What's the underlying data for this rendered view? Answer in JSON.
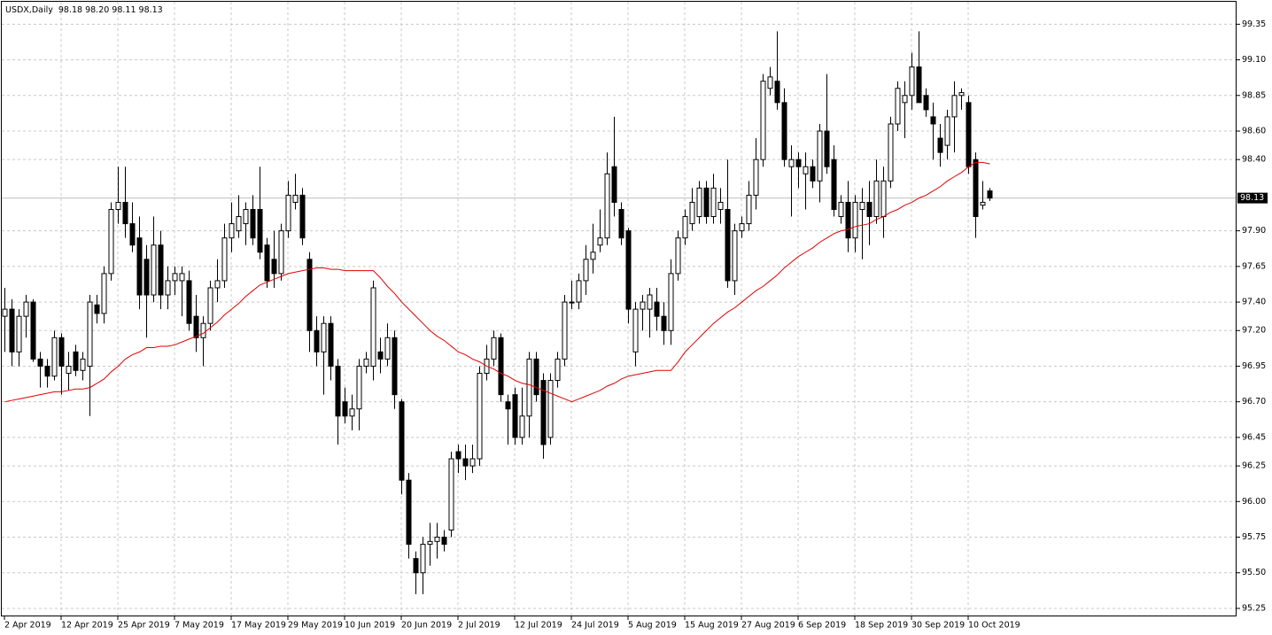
{
  "chart_data": {
    "type": "candlestick",
    "title": "USDX,Daily",
    "subtitle": "98.18 98.20 98.11 98.13",
    "categories": [
      "2 Apr 2019",
      null,
      null,
      null,
      null,
      null,
      null,
      null,
      "12 Apr 2019",
      null,
      null,
      null,
      null,
      null,
      null,
      null,
      "25 Apr 2019",
      null,
      null,
      null,
      null,
      null,
      null,
      null,
      "7 May 2019",
      null,
      null,
      null,
      null,
      null,
      null,
      null,
      "17 May 2019",
      null,
      null,
      null,
      null,
      null,
      null,
      null,
      "29 May 2019",
      null,
      null,
      null,
      null,
      null,
      null,
      null,
      "10 Jun 2019",
      null,
      null,
      null,
      null,
      null,
      null,
      null,
      "20 Jun 2019",
      null,
      null,
      null,
      null,
      null,
      null,
      null,
      "2 Jul 2019",
      null,
      null,
      null,
      null,
      null,
      null,
      null,
      "12 Jul 2019",
      null,
      null,
      null,
      null,
      null,
      null,
      null,
      "24 Jul 2019",
      null,
      null,
      null,
      null,
      null,
      null,
      null,
      "5 Aug 2019",
      null,
      null,
      null,
      null,
      null,
      null,
      null,
      "15 Aug 2019",
      null,
      null,
      null,
      null,
      null,
      null,
      null,
      "27 Aug 2019",
      null,
      null,
      null,
      null,
      null,
      null,
      null,
      "6 Sep 2019",
      null,
      null,
      null,
      null,
      null,
      null,
      null,
      "18 Sep 2019",
      null,
      null,
      null,
      null,
      null,
      null,
      null,
      "30 Sep 2019",
      null,
      null,
      null,
      null,
      null,
      null,
      null,
      "10 Oct 2019",
      null,
      null,
      null
    ],
    "open": [
      97.3,
      97.35,
      97.05,
      97.3,
      97.4,
      97.0,
      96.95,
      96.88,
      97.15,
      96.9,
      97.05,
      96.92,
      96.95,
      97.38,
      97.32,
      97.6,
      98.05,
      98.1,
      97.95,
      97.85,
      97.7,
      97.45,
      97.8,
      97.45,
      97.55,
      97.55,
      97.55,
      97.3,
      97.15,
      97.25,
      97.5,
      97.55,
      97.85,
      97.9,
      97.95,
      98.05,
      98.05,
      97.8,
      97.7,
      97.6,
      97.9,
      98.1,
      98.15,
      97.7,
      97.2,
      97.05,
      97.25,
      96.95,
      96.7,
      96.6,
      96.65,
      96.95,
      96.95,
      97.05,
      97.0,
      97.15,
      96.7,
      96.15,
      95.6,
      95.5,
      95.7,
      95.72,
      95.75,
      95.8,
      96.35,
      96.3,
      96.25,
      96.3,
      96.9,
      97.0,
      97.15,
      96.7,
      96.75,
      96.45,
      96.6,
      97.0,
      96.85,
      96.45,
      96.85,
      97.0,
      97.4,
      97.4,
      97.55,
      97.7,
      97.8,
      97.85,
      98.35,
      98.05,
      97.9,
      97.05,
      97.35,
      97.35,
      97.4,
      97.3,
      97.2,
      97.6,
      97.85,
      97.95,
      98.0,
      98.2,
      98.0,
      98.05,
      98.05,
      97.55,
      97.9,
      97.95,
      98.15,
      98.4,
      98.9,
      98.95,
      98.8,
      98.35,
      98.4,
      98.3,
      98.35,
      98.25,
      98.6,
      98.4,
      98.0,
      98.1,
      97.85,
      98.05,
      98.1,
      98.0,
      98.0,
      98.25,
      98.65,
      98.8,
      98.85,
      99.05,
      98.85,
      98.7,
      98.55,
      98.5,
      98.7,
      98.85,
      98.8,
      98.4,
      98.08,
      98.18
    ],
    "high": [
      97.5,
      97.42,
      97.35,
      97.45,
      97.42,
      97.05,
      97.0,
      97.2,
      97.18,
      97.05,
      97.1,
      97.05,
      97.45,
      97.45,
      97.65,
      98.1,
      98.35,
      98.35,
      98.1,
      98.0,
      97.8,
      98.0,
      97.9,
      97.65,
      97.65,
      97.65,
      97.62,
      97.45,
      97.3,
      97.55,
      97.7,
      97.95,
      98.1,
      98.15,
      98.1,
      98.15,
      98.35,
      97.85,
      97.9,
      97.95,
      98.25,
      98.3,
      98.2,
      97.75,
      97.3,
      97.3,
      97.3,
      97.0,
      96.8,
      96.75,
      97.0,
      97.05,
      97.55,
      97.15,
      97.25,
      97.2,
      96.72,
      96.2,
      95.65,
      95.75,
      95.85,
      95.85,
      95.8,
      96.35,
      96.4,
      96.4,
      96.4,
      96.95,
      97.1,
      97.2,
      97.18,
      96.75,
      96.8,
      96.8,
      97.05,
      97.05,
      96.9,
      96.9,
      97.05,
      97.45,
      97.55,
      97.6,
      97.8,
      97.95,
      98.05,
      98.45,
      98.7,
      98.1,
      97.92,
      97.4,
      97.45,
      97.5,
      97.5,
      97.4,
      97.7,
      97.9,
      98.05,
      98.2,
      98.25,
      98.25,
      98.3,
      98.2,
      98.4,
      97.95,
      98.0,
      98.25,
      98.55,
      99.0,
      99.05,
      99.3,
      98.9,
      98.5,
      98.45,
      98.45,
      98.4,
      98.65,
      99.0,
      98.5,
      98.15,
      98.25,
      98.15,
      98.2,
      98.25,
      98.4,
      98.35,
      98.7,
      98.95,
      98.95,
      99.15,
      99.3,
      98.9,
      98.8,
      98.65,
      98.75,
      98.95,
      98.9,
      98.85,
      98.45,
      98.25,
      98.2
    ],
    "low": [
      97.05,
      96.95,
      96.95,
      97.15,
      96.98,
      96.8,
      96.8,
      96.85,
      96.75,
      96.78,
      96.88,
      96.85,
      96.6,
      97.25,
      97.25,
      97.55,
      97.95,
      97.85,
      97.75,
      97.35,
      97.15,
      97.4,
      97.35,
      97.35,
      97.45,
      97.3,
      97.2,
      97.05,
      96.95,
      97.2,
      97.4,
      97.5,
      97.75,
      97.85,
      97.8,
      97.8,
      97.7,
      97.5,
      97.5,
      97.55,
      97.85,
      98.05,
      97.8,
      97.05,
      96.95,
      96.75,
      96.85,
      96.4,
      96.55,
      96.5,
      96.5,
      96.9,
      96.85,
      96.9,
      96.95,
      96.65,
      96.05,
      95.6,
      95.35,
      95.35,
      95.55,
      95.6,
      95.65,
      95.75,
      96.2,
      96.15,
      96.2,
      96.25,
      96.85,
      96.95,
      96.7,
      96.4,
      96.4,
      96.4,
      96.45,
      96.7,
      96.3,
      96.4,
      96.8,
      96.95,
      97.35,
      97.35,
      97.45,
      97.6,
      97.75,
      97.8,
      98.0,
      97.8,
      97.25,
      96.95,
      97.2,
      97.15,
      97.2,
      97.1,
      97.1,
      97.55,
      97.8,
      97.9,
      97.95,
      97.95,
      97.95,
      97.95,
      97.5,
      97.45,
      97.85,
      97.9,
      98.05,
      98.35,
      98.85,
      98.75,
      98.35,
      98.0,
      98.2,
      98.05,
      98.2,
      98.1,
      98.3,
      98.0,
      97.95,
      97.75,
      97.75,
      97.7,
      97.8,
      97.95,
      97.85,
      98.2,
      98.6,
      98.55,
      98.75,
      98.8,
      98.7,
      98.4,
      98.35,
      98.4,
      98.45,
      98.75,
      98.3,
      97.85,
      98.05,
      98.11
    ],
    "close": [
      97.35,
      97.05,
      97.3,
      97.4,
      97.0,
      96.95,
      96.88,
      97.15,
      96.95,
      96.95,
      96.92,
      97.0,
      97.4,
      97.32,
      97.6,
      98.05,
      98.1,
      97.95,
      97.8,
      97.45,
      97.45,
      97.8,
      97.45,
      97.55,
      97.6,
      97.6,
      97.25,
      97.15,
      97.25,
      97.5,
      97.55,
      97.85,
      97.95,
      98.0,
      98.05,
      97.85,
      97.75,
      97.55,
      97.6,
      97.9,
      98.15,
      98.15,
      97.85,
      97.2,
      97.05,
      97.25,
      96.95,
      96.6,
      96.6,
      96.65,
      96.95,
      97.0,
      97.5,
      97.0,
      97.15,
      96.75,
      96.15,
      95.7,
      95.5,
      95.7,
      95.72,
      95.75,
      95.7,
      96.3,
      96.3,
      96.25,
      96.3,
      96.9,
      97.0,
      97.15,
      96.75,
      96.65,
      96.45,
      96.6,
      97.0,
      96.75,
      96.4,
      96.85,
      97.0,
      97.4,
      97.4,
      97.55,
      97.7,
      97.75,
      97.85,
      98.3,
      98.1,
      97.85,
      97.35,
      97.35,
      97.4,
      97.45,
      97.3,
      97.2,
      97.6,
      97.85,
      98.0,
      98.1,
      98.2,
      98.0,
      98.2,
      98.1,
      97.55,
      97.9,
      97.95,
      98.15,
      98.4,
      98.95,
      98.98,
      98.8,
      98.4,
      98.4,
      98.35,
      98.35,
      98.25,
      98.6,
      98.35,
      98.05,
      98.1,
      97.85,
      98.1,
      98.1,
      98.0,
      98.25,
      98.25,
      98.65,
      98.9,
      98.85,
      99.05,
      98.8,
      98.75,
      98.65,
      98.45,
      98.7,
      98.85,
      98.87,
      98.35,
      98.0,
      98.1,
      98.13
    ],
    "up_color": "#ffffff",
    "down_color": "#000000",
    "ma": {
      "color": "#e00000",
      "values": [
        96.7,
        96.71,
        96.72,
        96.73,
        96.74,
        96.75,
        96.76,
        96.77,
        96.77,
        96.78,
        96.79,
        96.79,
        96.8,
        96.83,
        96.86,
        96.91,
        96.95,
        97.0,
        97.03,
        97.05,
        97.08,
        97.08,
        97.09,
        97.09,
        97.1,
        97.12,
        97.14,
        97.16,
        97.18,
        97.22,
        97.26,
        97.31,
        97.35,
        97.39,
        97.44,
        97.48,
        97.52,
        97.54,
        97.56,
        97.58,
        97.6,
        97.61,
        97.62,
        97.63,
        97.64,
        97.64,
        97.63,
        97.63,
        97.62,
        97.62,
        97.62,
        97.62,
        97.62,
        97.57,
        97.51,
        97.46,
        97.4,
        97.35,
        97.3,
        97.25,
        97.2,
        97.16,
        97.13,
        97.09,
        97.05,
        97.03,
        97.0,
        96.98,
        96.95,
        96.93,
        96.9,
        96.88,
        96.85,
        96.83,
        96.82,
        96.8,
        96.78,
        96.76,
        96.74,
        96.72,
        96.7,
        96.72,
        96.74,
        96.76,
        96.78,
        96.81,
        96.83,
        96.86,
        96.88,
        96.89,
        96.9,
        96.91,
        96.92,
        96.92,
        96.92,
        96.98,
        97.05,
        97.1,
        97.15,
        97.2,
        97.25,
        97.29,
        97.33,
        97.36,
        97.4,
        97.44,
        97.48,
        97.51,
        97.55,
        97.59,
        97.64,
        97.68,
        97.72,
        97.75,
        97.78,
        97.82,
        97.85,
        97.88,
        97.9,
        97.91,
        97.93,
        97.94,
        97.95,
        97.98,
        98.0,
        98.03,
        98.05,
        98.08,
        98.1,
        98.13,
        98.15,
        98.18,
        98.21,
        98.25,
        98.28,
        98.31,
        98.35,
        98.38,
        98.38,
        98.37
      ]
    },
    "ylim": [
      95.2,
      99.52
    ],
    "yticks": [
      99.35,
      {
        "value": 99.1,
        "label": "99.10"
      },
      98.85,
      {
        "value": 98.6,
        "label": "98.60"
      },
      {
        "value": 98.4,
        "label": "98.40"
      },
      {
        "value": 97.9,
        "label": "97.90"
      },
      97.65,
      {
        "value": 97.4,
        "label": "97.40"
      },
      {
        "value": 97.2,
        "label": "97.20"
      },
      96.95,
      {
        "value": 96.7,
        "label": "96.70"
      },
      96.45,
      96.25,
      {
        "value": 96,
        "label": "96.00"
      },
      95.75,
      {
        "value": 95.5,
        "label": "95.50"
      },
      95.25
    ],
    "grid": true
  }
}
